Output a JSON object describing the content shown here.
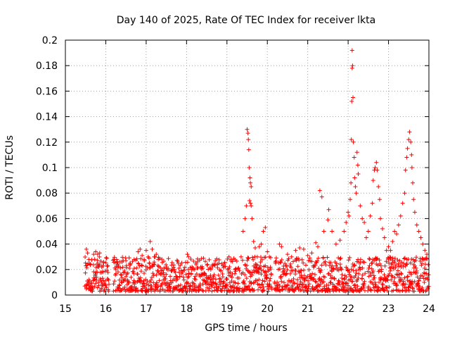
{
  "chart_data": {
    "type": "scatter",
    "title": "Day 140 of 2025, Rate Of TEC Index for receiver lkta",
    "xlabel": "GPS time / hours",
    "ylabel": "ROTI / TECUs",
    "xlim": [
      15,
      24
    ],
    "ylim": [
      0,
      0.2
    ],
    "xticks": [
      15,
      16,
      17,
      18,
      19,
      20,
      21,
      22,
      23,
      24
    ],
    "yticks": [
      0,
      0.02,
      0.04,
      0.06,
      0.08,
      0.1,
      0.12,
      0.14,
      0.16,
      0.18,
      0.2
    ],
    "xtick_labels": [
      "15",
      "16",
      "17",
      "18",
      "19",
      "20",
      "21",
      "22",
      "23",
      "24"
    ],
    "ytick_labels": [
      "0",
      "0.02",
      "0.04",
      "0.06",
      "0.08",
      "0.1",
      "0.12",
      "0.14",
      "0.16",
      "0.18",
      "0.2"
    ],
    "grid": true,
    "marker": "+",
    "marker_color": "#ff0000",
    "series": [
      {
        "name": "ROTI",
        "points": [
          [
            15.52,
            0.036
          ],
          [
            15.55,
            0.033
          ],
          [
            15.58,
            0.028
          ],
          [
            15.62,
            0.024
          ],
          [
            15.7,
            0.032
          ],
          [
            15.75,
            0.034
          ],
          [
            15.8,
            0.032
          ],
          [
            15.85,
            0.033
          ],
          [
            15.9,
            0.022
          ],
          [
            15.95,
            0.026
          ],
          [
            16.05,
            0.023
          ],
          [
            16.3,
            0.022
          ],
          [
            16.4,
            0.026
          ],
          [
            16.5,
            0.027
          ],
          [
            16.6,
            0.025
          ],
          [
            16.7,
            0.028
          ],
          [
            16.8,
            0.034
          ],
          [
            16.85,
            0.036
          ],
          [
            16.9,
            0.031
          ],
          [
            16.95,
            0.028
          ],
          [
            17.0,
            0.035
          ],
          [
            17.05,
            0.03
          ],
          [
            17.1,
            0.042
          ],
          [
            17.15,
            0.036
          ],
          [
            17.2,
            0.03
          ],
          [
            17.25,
            0.032
          ],
          [
            17.3,
            0.028
          ],
          [
            17.5,
            0.022
          ],
          [
            17.7,
            0.02
          ],
          [
            17.9,
            0.018
          ],
          [
            18.02,
            0.032
          ],
          [
            18.05,
            0.03
          ],
          [
            18.2,
            0.02
          ],
          [
            18.4,
            0.021
          ],
          [
            18.6,
            0.02
          ],
          [
            18.8,
            0.025
          ],
          [
            18.9,
            0.023
          ],
          [
            19.05,
            0.03
          ],
          [
            19.1,
            0.028
          ],
          [
            19.2,
            0.02
          ],
          [
            19.35,
            0.03
          ],
          [
            19.4,
            0.05
          ],
          [
            19.45,
            0.06
          ],
          [
            19.48,
            0.07
          ],
          [
            19.5,
            0.13
          ],
          [
            19.52,
            0.127
          ],
          [
            19.53,
            0.122
          ],
          [
            19.54,
            0.114
          ],
          [
            19.55,
            0.1
          ],
          [
            19.57,
            0.092
          ],
          [
            19.58,
            0.088
          ],
          [
            19.6,
            0.085
          ],
          [
            19.56,
            0.074
          ],
          [
            19.58,
            0.072
          ],
          [
            19.6,
            0.07
          ],
          [
            19.62,
            0.06
          ],
          [
            19.66,
            0.042
          ],
          [
            19.7,
            0.037
          ],
          [
            19.75,
            0.03
          ],
          [
            19.8,
            0.038
          ],
          [
            19.85,
            0.04
          ],
          [
            19.9,
            0.05
          ],
          [
            19.95,
            0.053
          ],
          [
            20.0,
            0.034
          ],
          [
            20.05,
            0.03
          ],
          [
            20.2,
            0.026
          ],
          [
            20.3,
            0.04
          ],
          [
            20.35,
            0.038
          ],
          [
            20.5,
            0.032
          ],
          [
            20.6,
            0.03
          ],
          [
            20.7,
            0.035
          ],
          [
            20.8,
            0.037
          ],
          [
            20.9,
            0.036
          ],
          [
            21.0,
            0.031
          ],
          [
            21.1,
            0.033
          ],
          [
            21.2,
            0.041
          ],
          [
            21.25,
            0.038
          ],
          [
            21.3,
            0.082
          ],
          [
            21.35,
            0.077
          ],
          [
            21.4,
            0.05
          ],
          [
            21.5,
            0.059
          ],
          [
            21.52,
            0.067
          ],
          [
            21.6,
            0.05
          ],
          [
            21.7,
            0.04
          ],
          [
            21.8,
            0.043
          ],
          [
            21.9,
            0.05
          ],
          [
            21.95,
            0.057
          ],
          [
            22.0,
            0.065
          ],
          [
            22.02,
            0.062
          ],
          [
            22.05,
            0.075
          ],
          [
            22.07,
            0.088
          ],
          [
            22.08,
            0.122
          ],
          [
            22.09,
            0.152
          ],
          [
            22.1,
            0.178
          ],
          [
            22.1,
            0.192
          ],
          [
            22.11,
            0.18
          ],
          [
            22.12,
            0.155
          ],
          [
            22.13,
            0.12
          ],
          [
            22.15,
            0.108
          ],
          [
            22.16,
            0.092
          ],
          [
            22.18,
            0.085
          ],
          [
            22.2,
            0.08
          ],
          [
            22.22,
            0.112
          ],
          [
            22.24,
            0.102
          ],
          [
            22.25,
            0.095
          ],
          [
            22.3,
            0.07
          ],
          [
            22.35,
            0.06
          ],
          [
            22.4,
            0.057
          ],
          [
            22.45,
            0.045
          ],
          [
            22.5,
            0.05
          ],
          [
            22.55,
            0.062
          ],
          [
            22.6,
            0.072
          ],
          [
            22.62,
            0.09
          ],
          [
            22.65,
            0.098
          ],
          [
            22.67,
            0.1
          ],
          [
            22.7,
            0.104
          ],
          [
            22.72,
            0.098
          ],
          [
            22.75,
            0.085
          ],
          [
            22.78,
            0.075
          ],
          [
            22.8,
            0.06
          ],
          [
            22.85,
            0.052
          ],
          [
            22.9,
            0.045
          ],
          [
            22.95,
            0.035
          ],
          [
            23.0,
            0.038
          ],
          [
            23.05,
            0.035
          ],
          [
            23.1,
            0.042
          ],
          [
            23.15,
            0.05
          ],
          [
            23.2,
            0.048
          ],
          [
            23.25,
            0.055
          ],
          [
            23.3,
            0.062
          ],
          [
            23.35,
            0.072
          ],
          [
            23.4,
            0.08
          ],
          [
            23.42,
            0.098
          ],
          [
            23.45,
            0.108
          ],
          [
            23.47,
            0.115
          ],
          [
            23.5,
            0.122
          ],
          [
            23.52,
            0.128
          ],
          [
            23.55,
            0.12
          ],
          [
            23.57,
            0.11
          ],
          [
            23.58,
            0.1
          ],
          [
            23.6,
            0.088
          ],
          [
            23.62,
            0.075
          ],
          [
            23.65,
            0.065
          ],
          [
            23.7,
            0.055
          ],
          [
            23.75,
            0.05
          ],
          [
            23.8,
            0.045
          ],
          [
            23.85,
            0.04
          ],
          [
            23.9,
            0.035
          ],
          [
            23.95,
            0.032
          ]
        ],
        "dense_band": {
          "x_range": [
            15.48,
            24.0
          ],
          "typical_range": [
            0.003,
            0.03
          ],
          "gaps": [
            [
              16.08,
              16.18
            ],
            [
              19.32,
              19.36
            ],
            [
              20.12,
              20.18
            ],
            [
              22.42,
              22.48
            ]
          ]
        }
      }
    ]
  }
}
